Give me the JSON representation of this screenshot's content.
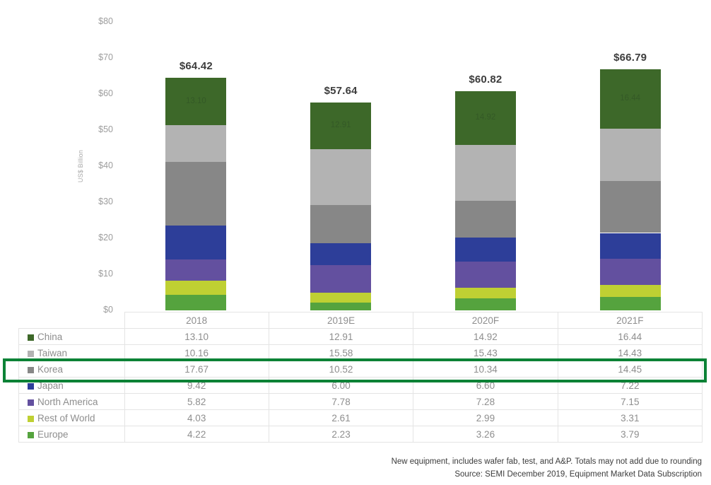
{
  "chart_data": {
    "type": "bar",
    "stacked": true,
    "ylabel": "US$ Billion",
    "ylim": [
      0,
      80
    ],
    "grid": false,
    "legend_position": "table-left-column",
    "y_ticks": [
      "$0",
      "$10",
      "$20",
      "$30",
      "$40",
      "$50",
      "$60",
      "$70",
      "$80"
    ],
    "categories": [
      "2018",
      "2019E",
      "2020F",
      "2021F"
    ],
    "series": [
      {
        "name": "China",
        "color": "#3d6829",
        "values": [
          13.1,
          12.91,
          14.92,
          16.44
        ]
      },
      {
        "name": "Taiwan",
        "color": "#b3b3b3",
        "values": [
          10.16,
          15.58,
          15.43,
          14.43
        ]
      },
      {
        "name": "Korea",
        "color": "#878787",
        "values": [
          17.67,
          10.52,
          10.34,
          14.45
        ]
      },
      {
        "name": "Japan",
        "color": "#2d3e99",
        "values": [
          9.42,
          6.0,
          6.6,
          7.22
        ]
      },
      {
        "name": "North America",
        "color": "#63509f",
        "values": [
          5.82,
          7.78,
          7.28,
          7.15
        ]
      },
      {
        "name": "Rest of World",
        "color": "#bfd033",
        "values": [
          4.03,
          2.61,
          2.99,
          3.31
        ]
      },
      {
        "name": "Europe",
        "color": "#55a33e",
        "values": [
          4.22,
          2.23,
          3.26,
          3.79
        ]
      }
    ],
    "totals": [
      "$64.42",
      "$57.64",
      "$60.82",
      "$66.79"
    ],
    "bar_inner_labels": [
      "13.10",
      "12.91",
      "14.92",
      "16.44"
    ],
    "highlight": {
      "row": "Korea",
      "color": "#0c8236"
    }
  },
  "footer": {
    "line1": "New equipment, includes wafer fab, test, and A&P. Totals may not add due to rounding",
    "line2": "Source: SEMI December 2019, Equipment Market Data Subscription"
  }
}
